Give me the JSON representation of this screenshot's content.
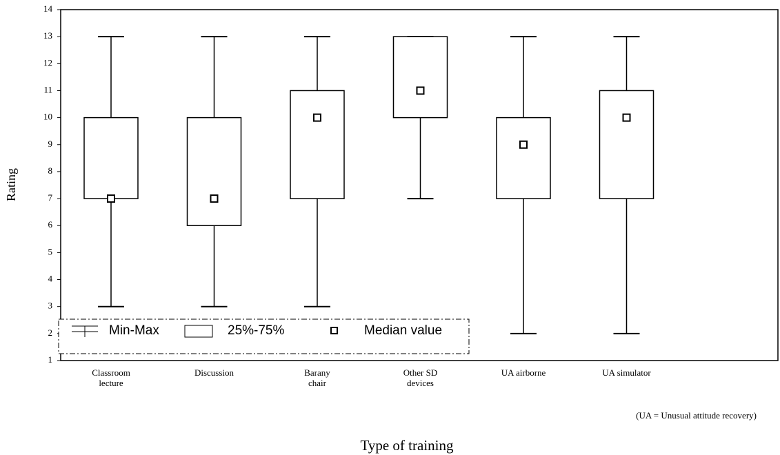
{
  "chart_data": {
    "type": "box",
    "x_label": "Type of training",
    "y_label": "Rating",
    "note": "(UA = Unusual attitude recovery)",
    "categories": [
      "Classroom\nlecture",
      "Discussion",
      "Barany\nchair",
      "Other SD\ndevices",
      "UA airborne",
      "UA simulator"
    ],
    "boxes": [
      {
        "min": 3,
        "q1": 7,
        "median": 7,
        "q3": 10,
        "max": 13
      },
      {
        "min": 3,
        "q1": 6,
        "median": 7,
        "q3": 10,
        "max": 13
      },
      {
        "min": 3,
        "q1": 7,
        "median": 10,
        "q3": 11,
        "max": 13
      },
      {
        "min": 7,
        "q1": 10,
        "median": 11,
        "q3": 13,
        "max": 13
      },
      {
        "min": 2,
        "q1": 7,
        "median": 9,
        "q3": 10,
        "max": 13
      },
      {
        "min": 2,
        "q1": 7,
        "median": 10,
        "q3": 11,
        "max": 13
      }
    ],
    "legend": [
      "Min-Max",
      "25%-75%",
      "Median value"
    ],
    "color": "#000000",
    "ylim": [
      1,
      14
    ],
    "yticks": [
      1,
      2,
      3,
      4,
      5,
      6,
      7,
      8,
      9,
      10,
      11,
      12,
      13,
      14
    ]
  }
}
